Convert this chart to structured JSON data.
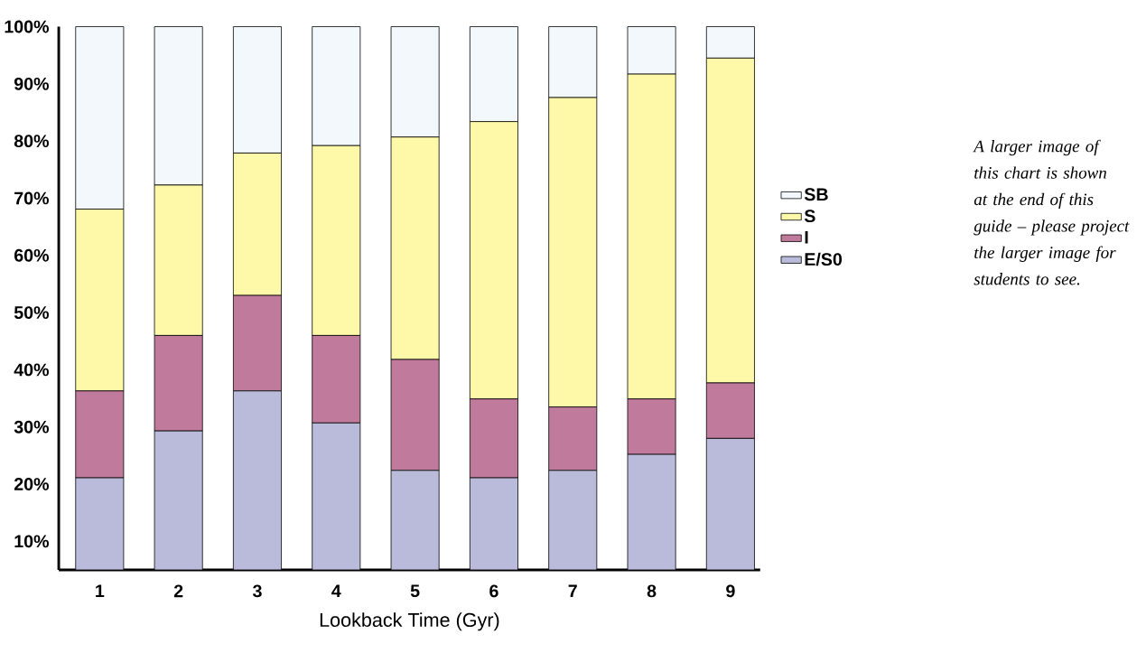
{
  "chart_data": {
    "type": "bar",
    "stacked": true,
    "xlabel": "Lookback Time (Gyr)",
    "categories": [
      "1",
      "2",
      "3",
      "4",
      "5",
      "6",
      "7",
      "8",
      "9"
    ],
    "series": [
      {
        "name": "E/S0",
        "color": "#babbdb",
        "values": [
          21.1,
          29.3,
          36.3,
          30.7,
          22.4,
          21.1,
          22.4,
          25.2,
          28.0
        ]
      },
      {
        "name": "I",
        "color": "#c07a9b",
        "values": [
          15.2,
          16.7,
          16.7,
          15.3,
          19.4,
          13.8,
          11.1,
          9.7,
          9.7
        ]
      },
      {
        "name": "S",
        "color": "#fdf9a8",
        "values": [
          31.8,
          26.3,
          24.9,
          33.2,
          38.9,
          48.5,
          54.1,
          56.8,
          56.8
        ]
      },
      {
        "name": "SB",
        "color": "#f3f8fd",
        "values": [
          31.9,
          27.7,
          22.1,
          20.8,
          19.3,
          16.6,
          12.4,
          8.3,
          5.5
        ]
      }
    ],
    "ylim": [
      5,
      100
    ],
    "yticks": [
      {
        "value": 10,
        "label": "10%"
      },
      {
        "value": 20,
        "label": "20%"
      },
      {
        "value": 30,
        "label": "30%"
      },
      {
        "value": 40,
        "label": "40%"
      },
      {
        "value": 50,
        "label": "50%"
      },
      {
        "value": 60,
        "label": "60%"
      },
      {
        "value": 70,
        "label": "70%"
      },
      {
        "value": 80,
        "label": "80%"
      },
      {
        "value": 90,
        "label": "90%"
      },
      {
        "value": 100,
        "label": "100%"
      }
    ],
    "legend": "right",
    "annotations": [
      "A larger image of this chart is shown at the end of this guide – please project the larger image for students to see."
    ]
  }
}
